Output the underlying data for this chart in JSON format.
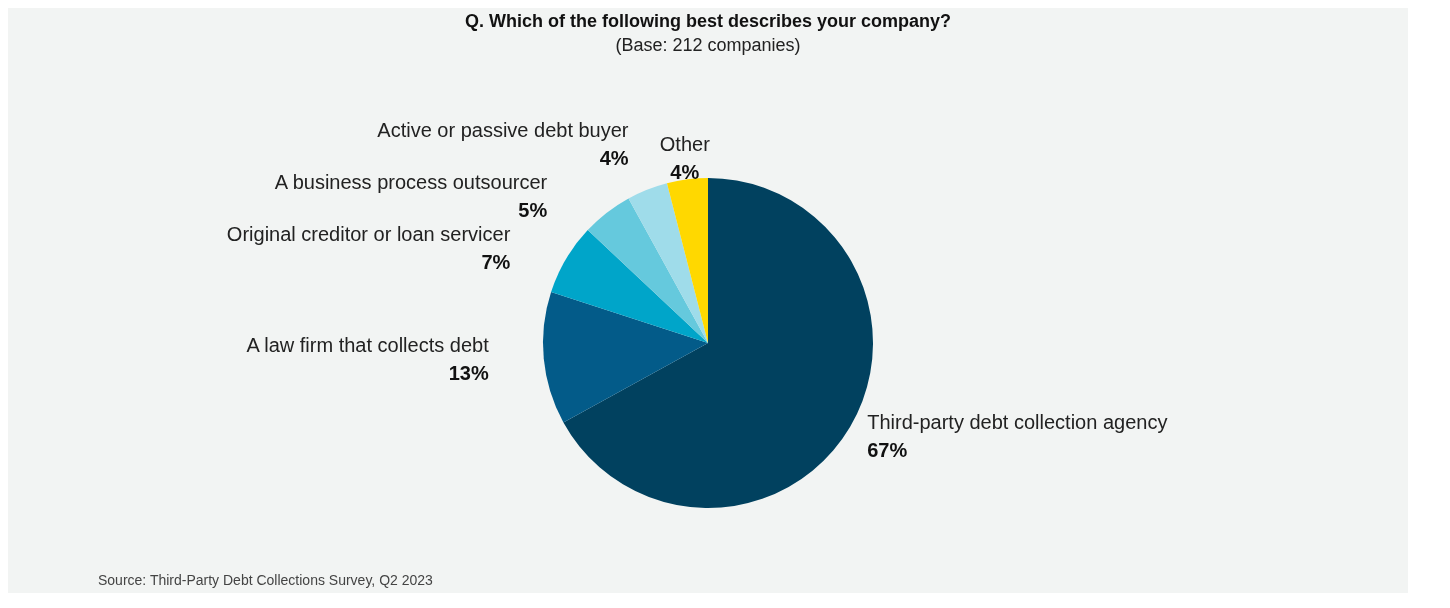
{
  "chart_data": {
    "type": "pie",
    "title": "Q. Which of the following best describes your company?",
    "subtitle": "(Base: 212 companies)",
    "categories": [
      "Third-party debt collection agency",
      "A law firm that collects debt",
      "Original creditor or loan servicer",
      "A business process outsourcer",
      "Active or passive debt buyer",
      "Other"
    ],
    "values": [
      67,
      13,
      7,
      5,
      4,
      4
    ],
    "value_labels": [
      "67%",
      "13%",
      "7%",
      "5%",
      "4%",
      "4%"
    ],
    "colors": [
      "#01415f",
      "#035b89",
      "#00a5c9",
      "#65c9dd",
      "#9fdcea",
      "#ffd800"
    ],
    "annotations": [
      "Source: Third-Party Debt Collections Survey, Q2 2023"
    ]
  }
}
